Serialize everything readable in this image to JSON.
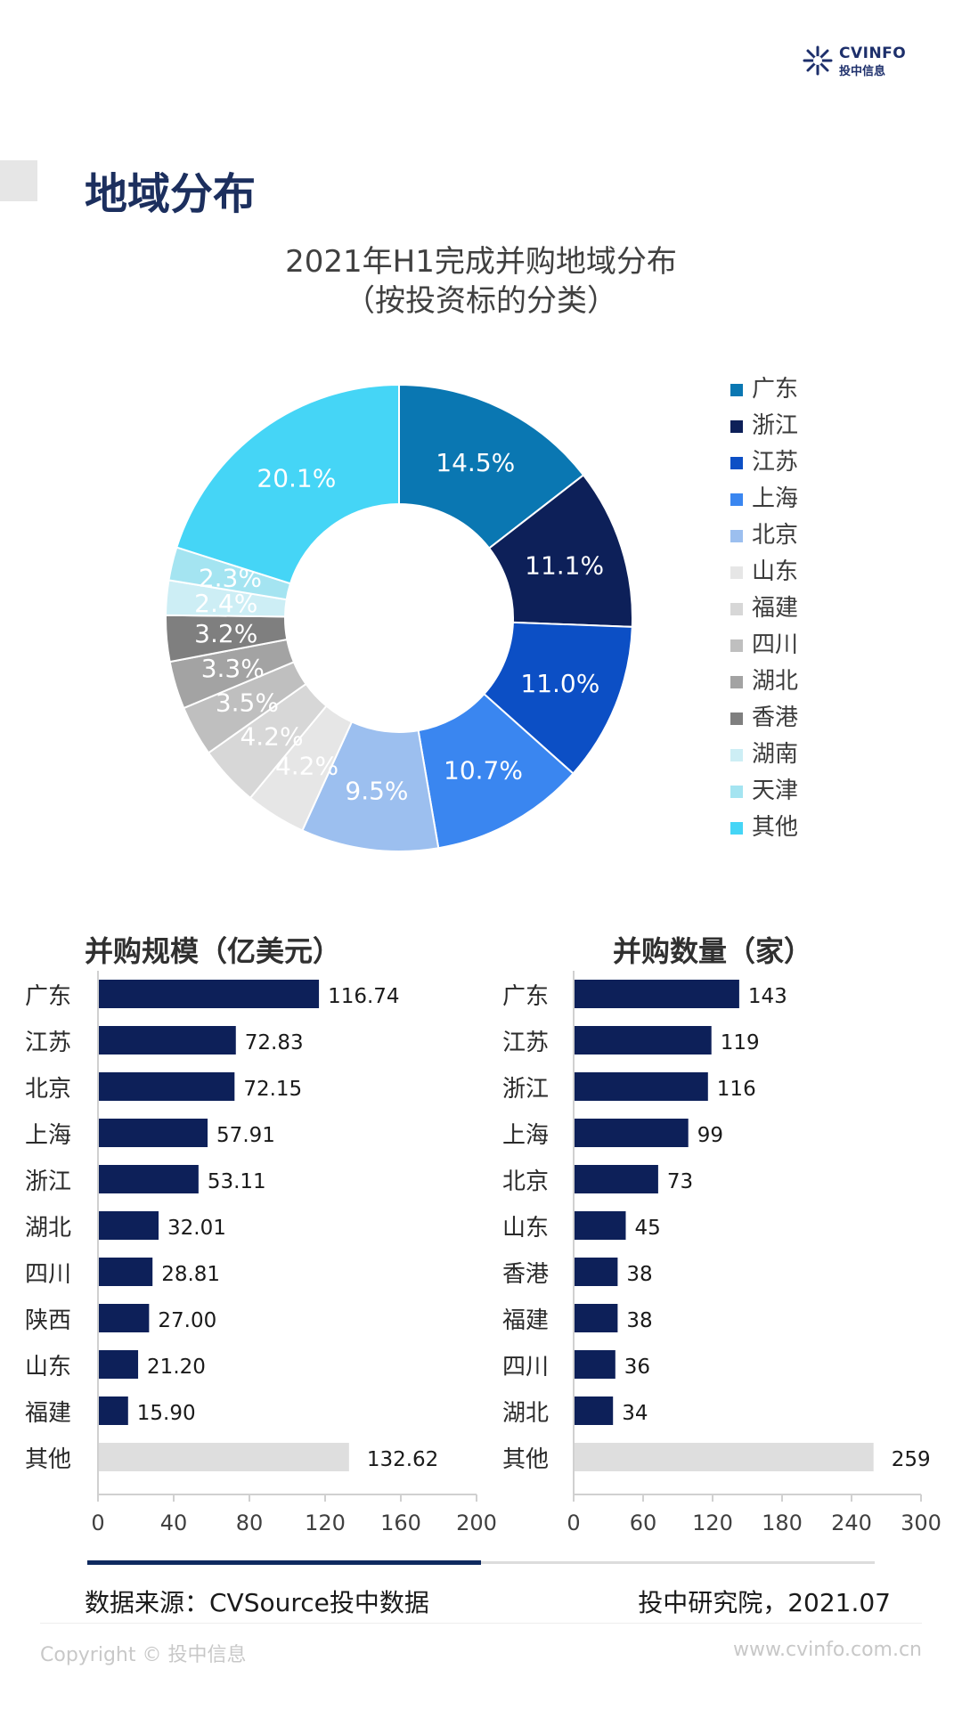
{
  "header": {
    "logo_brand": "CVINFO",
    "logo_sub": "投中信息",
    "page_title": "地域分布"
  },
  "chart_data": [
    {
      "type": "pie",
      "variant": "donut",
      "title": "2021年H1完成并购地域分布",
      "subtitle": "（按投资标的分类）",
      "legend_position": "right",
      "categories": [
        "广东",
        "浙江",
        "江苏",
        "上海",
        "北京",
        "山东",
        "福建",
        "四川",
        "湖北",
        "香港",
        "湖南",
        "天津",
        "其他"
      ],
      "values": [
        14.5,
        11.1,
        11.0,
        10.7,
        9.5,
        4.2,
        4.2,
        3.5,
        3.3,
        3.2,
        2.4,
        2.3,
        20.1
      ],
      "labels": [
        "14.5%",
        "11.1%",
        "11.0%",
        "10.7%",
        "9.5%",
        "4.2%",
        "4.2%",
        "3.5%",
        "3.3%",
        "3.2%",
        "2.4%",
        "2.3%",
        "20.1%"
      ],
      "colors": [
        "#0a77b2",
        "#0d2059",
        "#0c4fc5",
        "#3a86f0",
        "#9cbfef",
        "#e6e6e6",
        "#d7d7d7",
        "#bfbfbf",
        "#a3a3a3",
        "#7f7f7f",
        "#cdeef5",
        "#a4e4f1",
        "#45d5f6"
      ],
      "label_colors": [
        "#ffffff",
        "#ffffff",
        "#ffffff",
        "#ffffff",
        "#ffffff",
        "#ffffff",
        "#ffffff",
        "#ffffff",
        "#ffffff",
        "#ffffff",
        "#ffffff",
        "#ffffff",
        "#ffffff"
      ]
    },
    {
      "type": "bar",
      "orientation": "horizontal",
      "title": "并购规模（亿美元）",
      "categories": [
        "广东",
        "江苏",
        "北京",
        "上海",
        "浙江",
        "湖北",
        "四川",
        "陕西",
        "山东",
        "福建",
        "其他"
      ],
      "values": [
        116.74,
        72.83,
        72.15,
        57.91,
        53.11,
        32.01,
        28.81,
        27.0,
        21.2,
        15.9,
        132.62
      ],
      "value_labels": [
        "116.74",
        "72.83",
        "72.15",
        "57.91",
        "53.11",
        "32.01",
        "28.81",
        "27.00",
        "21.20",
        "15.90",
        "132.62"
      ],
      "xlim": [
        0,
        200
      ],
      "ticks": [
        "0",
        "40",
        "80",
        "120",
        "160",
        "200"
      ],
      "bar_color": "#0d2059",
      "other_color": "#dedede"
    },
    {
      "type": "bar",
      "orientation": "horizontal",
      "title": "并购数量（家）",
      "categories": [
        "广东",
        "江苏",
        "浙江",
        "上海",
        "北京",
        "山东",
        "香港",
        "福建",
        "四川",
        "湖北",
        "其他"
      ],
      "values": [
        143,
        119,
        116,
        99,
        73,
        45,
        38,
        38,
        36,
        34,
        259
      ],
      "value_labels": [
        "143",
        "119",
        "116",
        "99",
        "73",
        "45",
        "38",
        "38",
        "36",
        "34",
        "259"
      ],
      "xlim": [
        0,
        300
      ],
      "ticks": [
        "0",
        "60",
        "120",
        "180",
        "240",
        "300"
      ],
      "bar_color": "#0d2059",
      "other_color": "#dedede"
    }
  ],
  "footer": {
    "source": "数据来源：CVSource投中数据",
    "credit": "投中研究院，2021.07",
    "copyright": "Copyright © 投中信息",
    "site": "www.cvinfo.com.cn"
  }
}
